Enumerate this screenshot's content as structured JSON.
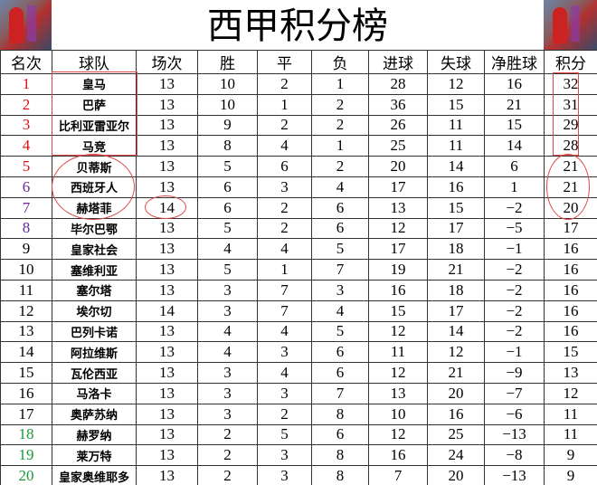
{
  "title": "西甲积分榜",
  "corner_images": [
    "anime-basketball-player-left",
    "anime-basketball-player-right"
  ],
  "colors": {
    "champions_league": "#e01010",
    "europe": "#6a2a9a",
    "relegation": "#1a9a3a",
    "annotation": "#e04848"
  },
  "headers": [
    "名次",
    "球队",
    "场次",
    "胜",
    "平",
    "负",
    "进球",
    "失球",
    "净胜球",
    "积分"
  ],
  "rows": [
    [
      "1",
      "皇马",
      "13",
      "10",
      "2",
      "1",
      "28",
      "12",
      "16",
      "32"
    ],
    [
      "2",
      "巴萨",
      "13",
      "10",
      "1",
      "2",
      "36",
      "15",
      "21",
      "31"
    ],
    [
      "3",
      "比利亚雷亚尔",
      "13",
      "9",
      "2",
      "2",
      "26",
      "11",
      "15",
      "29"
    ],
    [
      "4",
      "马竞",
      "13",
      "8",
      "4",
      "1",
      "25",
      "11",
      "14",
      "28"
    ],
    [
      "5",
      "贝蒂斯",
      "13",
      "5",
      "6",
      "2",
      "20",
      "14",
      "6",
      "21"
    ],
    [
      "6",
      "西班牙人",
      "13",
      "6",
      "3",
      "4",
      "17",
      "16",
      "1",
      "21"
    ],
    [
      "7",
      "赫塔菲",
      "14",
      "6",
      "2",
      "6",
      "13",
      "15",
      "−2",
      "20"
    ],
    [
      "8",
      "毕尔巴鄂",
      "13",
      "5",
      "2",
      "6",
      "12",
      "17",
      "−5",
      "17"
    ],
    [
      "9",
      "皇家社会",
      "13",
      "4",
      "4",
      "5",
      "17",
      "18",
      "−1",
      "16"
    ],
    [
      "10",
      "塞维利亚",
      "13",
      "5",
      "1",
      "7",
      "19",
      "21",
      "−2",
      "16"
    ],
    [
      "11",
      "塞尔塔",
      "13",
      "3",
      "7",
      "3",
      "16",
      "18",
      "−2",
      "16"
    ],
    [
      "12",
      "埃尔切",
      "14",
      "3",
      "7",
      "4",
      "15",
      "17",
      "−2",
      "16"
    ],
    [
      "13",
      "巴列卡诺",
      "13",
      "4",
      "4",
      "5",
      "12",
      "14",
      "−2",
      "16"
    ],
    [
      "14",
      "阿拉维斯",
      "13",
      "4",
      "3",
      "6",
      "11",
      "12",
      "−1",
      "15"
    ],
    [
      "15",
      "瓦伦西亚",
      "13",
      "3",
      "4",
      "6",
      "12",
      "21",
      "−9",
      "13"
    ],
    [
      "16",
      "马洛卡",
      "13",
      "3",
      "3",
      "7",
      "13",
      "20",
      "−7",
      "12"
    ],
    [
      "17",
      "奥萨苏纳",
      "13",
      "3",
      "2",
      "8",
      "10",
      "16",
      "−6",
      "11"
    ],
    [
      "18",
      "赫罗纳",
      "13",
      "2",
      "5",
      "6",
      "12",
      "25",
      "−13",
      "11"
    ],
    [
      "19",
      "莱万特",
      "13",
      "2",
      "3",
      "8",
      "16",
      "24",
      "−8",
      "9"
    ],
    [
      "20",
      "皇家奥维耶多",
      "13",
      "2",
      "3",
      "8",
      "7",
      "20",
      "−13",
      "9"
    ]
  ]
}
